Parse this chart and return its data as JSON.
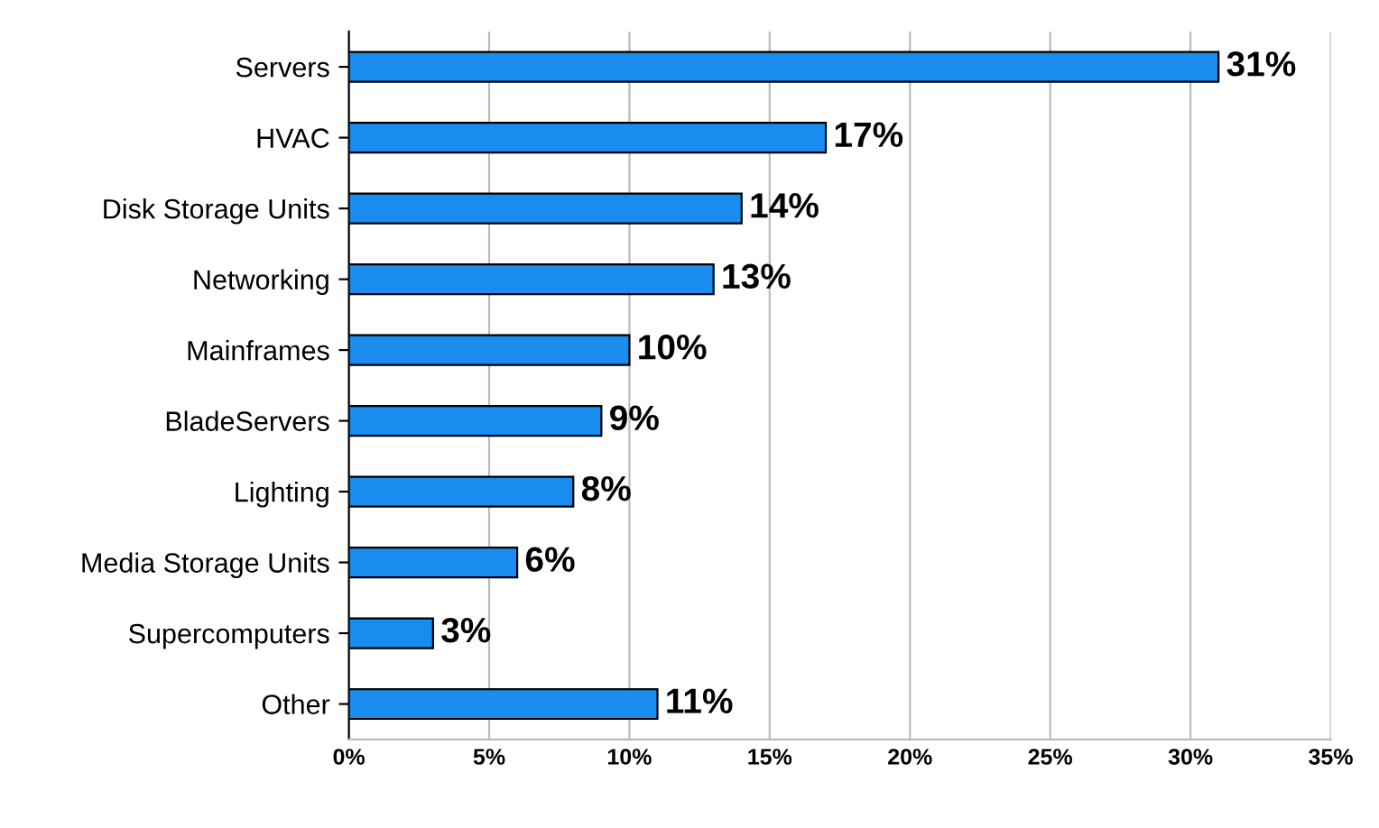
{
  "chart_data": {
    "type": "bar",
    "orientation": "horizontal",
    "categories": [
      "Servers",
      "HVAC",
      "Disk Storage Units",
      "Networking",
      "Mainframes",
      "BladeServers",
      "Lighting",
      "Media Storage Units",
      "Supercomputers",
      "Other"
    ],
    "values": [
      31,
      17,
      14,
      13,
      10,
      9,
      8,
      6,
      3,
      11
    ],
    "value_labels": [
      "31%",
      "17%",
      "14%",
      "13%",
      "10%",
      "9%",
      "8%",
      "6%",
      "3%",
      "11%"
    ],
    "color": "#1a8cf0",
    "xlim": [
      0,
      35
    ],
    "xticks": [
      {
        "value": 0,
        "label": "0%"
      },
      {
        "value": 5,
        "label": "5%"
      },
      {
        "value": 10,
        "label": "10%"
      },
      {
        "value": 15,
        "label": "15%"
      },
      {
        "value": 20,
        "label": "20%"
      },
      {
        "value": 25,
        "label": "25%"
      },
      {
        "value": 30,
        "label": "30%"
      },
      {
        "value": 35,
        "label": "35%"
      }
    ],
    "grid": "x"
  }
}
